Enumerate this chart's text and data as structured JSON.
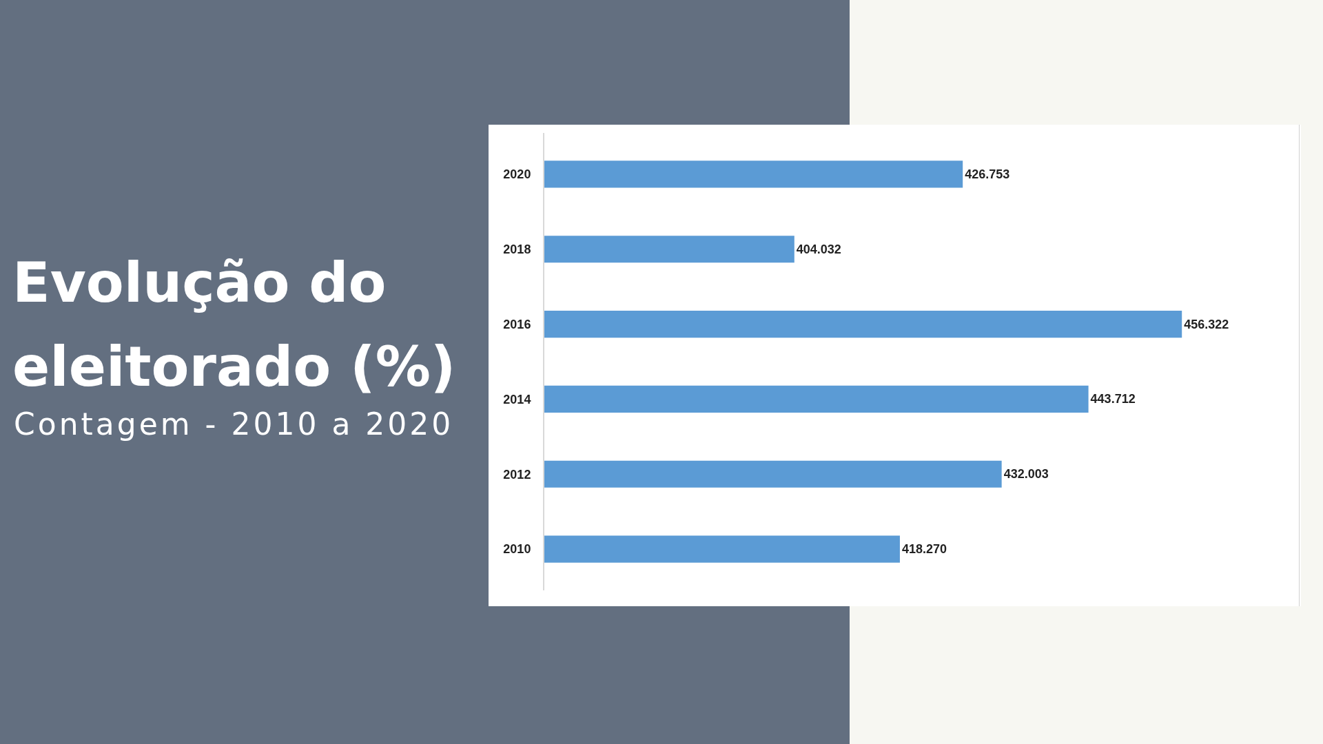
{
  "chart_data": {
    "type": "bar",
    "title": "Evolução do eleitorado (%)",
    "subtitle": "Contagem - 2010 a 2020",
    "orientation": "horizontal",
    "categories": [
      "2020",
      "2018",
      "2016",
      "2014",
      "2012",
      "2010"
    ],
    "values": [
      426753,
      404032,
      456322,
      443712,
      432003,
      418270
    ],
    "value_labels": [
      "426.753",
      "404.032",
      "456.322",
      "443.712",
      "432.003",
      "418.270"
    ],
    "color": "#5b9bd5",
    "xlim": [
      370300,
      472200
    ],
    "tick_labels": "y",
    "grid": false,
    "legend": false
  }
}
